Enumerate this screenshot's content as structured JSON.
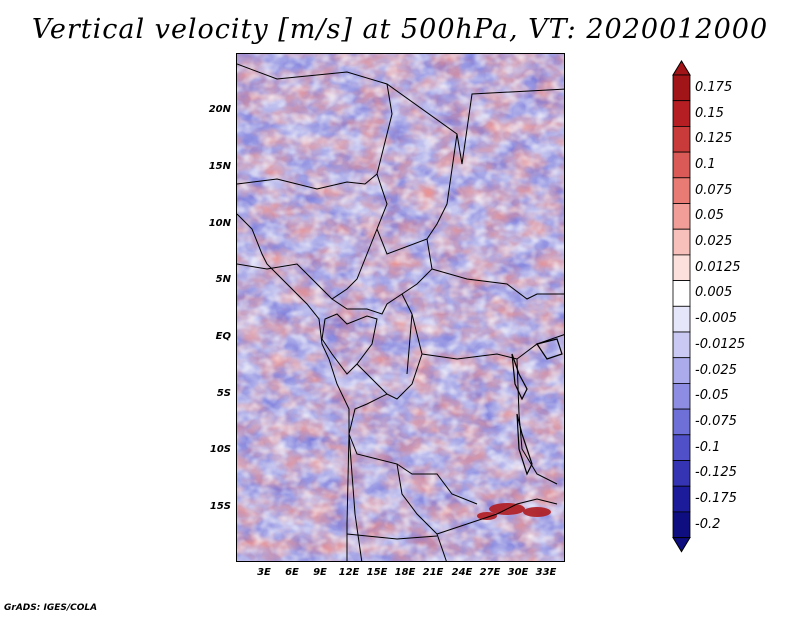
{
  "title": "Vertical velocity [m/s] at 500hPa, VT: 2020012000",
  "credit": "GrADS: IGES/COLA",
  "map": {
    "lat_ticks": [
      "20N",
      "15N",
      "10N",
      "5N",
      "EQ",
      "5S",
      "10S",
      "15S"
    ],
    "lon_ticks": [
      "3E",
      "6E",
      "9E",
      "12E",
      "15E",
      "18E",
      "21E",
      "24E",
      "27E",
      "30E",
      "33E"
    ],
    "background_color": "#dcdcf5",
    "border_color": "#000000"
  },
  "colorbar": {
    "labels": [
      "0.175",
      "0.15",
      "0.125",
      "0.1",
      "0.075",
      "0.05",
      "0.025",
      "0.0125",
      "0.005",
      "-0.005",
      "-0.0125",
      "-0.025",
      "-0.05",
      "-0.075",
      "-0.1",
      "-0.125",
      "-0.175",
      "-0.2"
    ],
    "colors": [
      "#a11418",
      "#b51f24",
      "#c93a3a",
      "#d95a56",
      "#e87b74",
      "#f09e97",
      "#f7c0ba",
      "#fbe0dc",
      "#ffffff",
      "#e6e6fa",
      "#c9c9f3",
      "#ababec",
      "#8d8de3",
      "#6f6fd8",
      "#5050c8",
      "#3535b4",
      "#1c1c9a",
      "#0e0e80"
    ]
  },
  "chart_data": {
    "type": "heatmap",
    "title": "Vertical velocity [m/s] at 500hPa, VT: 2020012000",
    "xlabel": "",
    "ylabel": "",
    "x_ticks": [
      "3E",
      "6E",
      "9E",
      "12E",
      "15E",
      "18E",
      "21E",
      "24E",
      "27E",
      "30E",
      "33E"
    ],
    "y_ticks": [
      "20N",
      "15N",
      "10N",
      "5N",
      "EQ",
      "5S",
      "10S",
      "15S"
    ],
    "color_levels": [
      -0.2,
      -0.175,
      -0.125,
      -0.1,
      -0.075,
      -0.05,
      -0.025,
      -0.0125,
      -0.005,
      0.005,
      0.0125,
      0.025,
      0.05,
      0.075,
      0.1,
      0.125,
      0.15,
      0.175
    ],
    "units": "m/s"
  }
}
